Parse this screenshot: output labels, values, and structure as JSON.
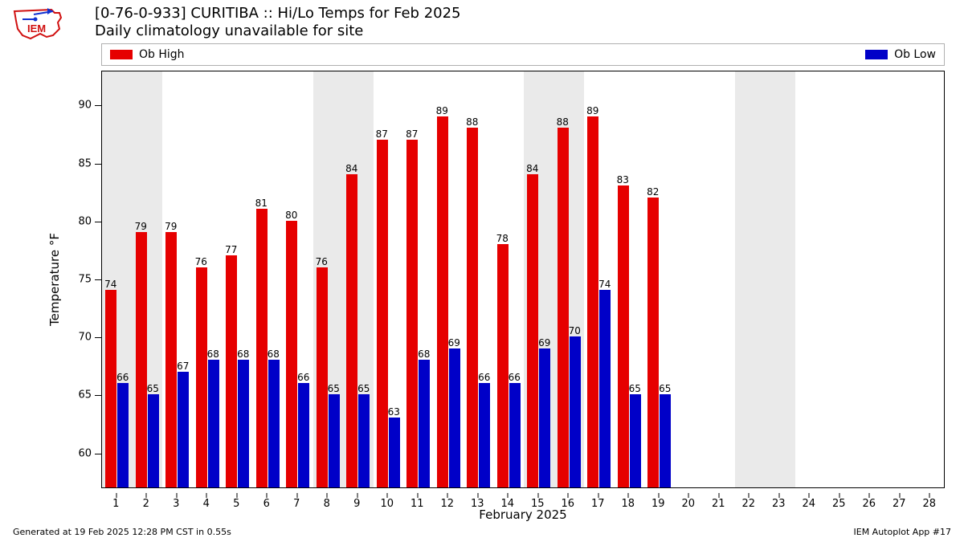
{
  "title_line1": "[0-76-0-933] CURITIBA :: Hi/Lo Temps for Feb 2025",
  "title_line2": "Daily climatology unavailable for site",
  "legend": {
    "high_label": "Ob High",
    "low_label": "Ob Low",
    "high_color": "#e60000",
    "low_color": "#0000c8"
  },
  "axes": {
    "ylabel": "Temperature °F",
    "xlabel": "February 2025",
    "ylim_min": 57,
    "ylim_max": 93,
    "yticks": [
      60,
      65,
      70,
      75,
      80,
      85,
      90
    ],
    "xdays_min": 0.5,
    "xdays_max": 28.5,
    "xdays": [
      1,
      2,
      3,
      4,
      5,
      6,
      7,
      8,
      9,
      10,
      11,
      12,
      13,
      14,
      15,
      16,
      17,
      18,
      19,
      20,
      21,
      22,
      23,
      24,
      25,
      26,
      27,
      28
    ],
    "weekend_days": [
      1,
      2,
      8,
      9,
      15,
      16,
      22,
      23
    ],
    "weekend_color": "#eaeaea",
    "border_color": "#000000"
  },
  "bars": {
    "bar_width_days": 0.38,
    "high_offset_days": -0.2,
    "low_offset_days": 0.2,
    "high_color": "#e60000",
    "low_color": "#0000c8",
    "label_fontsize": 12
  },
  "data": [
    {
      "day": 1,
      "high": 74,
      "low": 66
    },
    {
      "day": 2,
      "high": 79,
      "low": 65
    },
    {
      "day": 3,
      "high": 79,
      "low": 67
    },
    {
      "day": 4,
      "high": 76,
      "low": 68
    },
    {
      "day": 5,
      "high": 77,
      "low": 68
    },
    {
      "day": 6,
      "high": 81,
      "low": 68
    },
    {
      "day": 7,
      "high": 80,
      "low": 66
    },
    {
      "day": 8,
      "high": 76,
      "low": 65
    },
    {
      "day": 9,
      "high": 84,
      "low": 65
    },
    {
      "day": 10,
      "high": 87,
      "low": 63
    },
    {
      "day": 11,
      "high": 87,
      "low": 68
    },
    {
      "day": 12,
      "high": 89,
      "low": 69
    },
    {
      "day": 13,
      "high": 88,
      "low": 66
    },
    {
      "day": 14,
      "high": 78,
      "low": 66
    },
    {
      "day": 15,
      "high": 84,
      "low": 69
    },
    {
      "day": 16,
      "high": 88,
      "low": 70
    },
    {
      "day": 17,
      "high": 89,
      "low": 74
    },
    {
      "day": 18,
      "high": 83,
      "low": 65
    },
    {
      "day": 19,
      "high": 82,
      "low": 65
    }
  ],
  "footer": {
    "left": "Generated at 19 Feb 2025 12:28 PM CST in 0.55s",
    "right": "IEM Autoplot App #17"
  },
  "logo": {
    "outline_color": "#d01010",
    "accent_color": "#1030d0",
    "text": "IEM"
  }
}
